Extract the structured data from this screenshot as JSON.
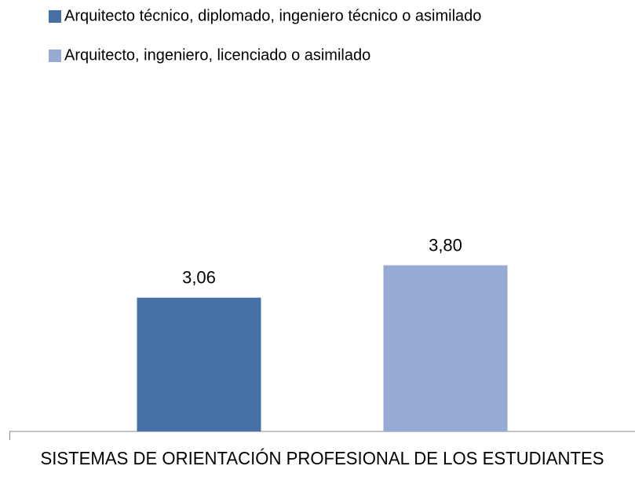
{
  "chart_data": {
    "type": "bar",
    "categories": [
      "SISTEMAS DE ORIENTACIÓN PROFESIONAL DE LOS ESTUDIANTES"
    ],
    "series": [
      {
        "name": "Arquitecto técnico, diplomado,  ingeniero técnico o asimilado",
        "color": "#4571a7",
        "values": [
          3.06
        ],
        "value_labels": [
          "3,06"
        ]
      },
      {
        "name": "Arquitecto, ingeniero,  licenciado o asimilado",
        "color": "#95abd3",
        "values": [
          3.8
        ],
        "value_labels": [
          "3,80"
        ]
      }
    ],
    "ylim": [
      0,
      8
    ],
    "legend": "top-left"
  }
}
